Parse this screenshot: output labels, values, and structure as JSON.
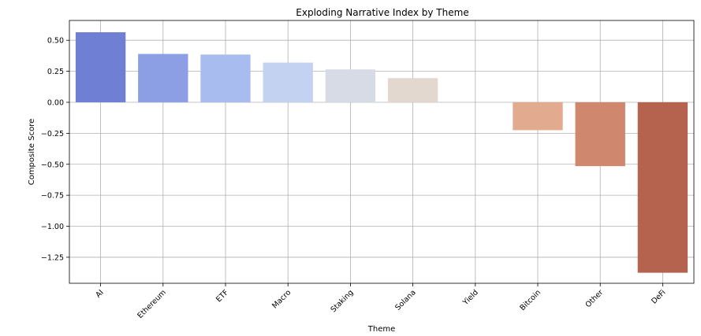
{
  "chart_data": {
    "type": "bar",
    "title": "Exploding Narrative Index by Theme",
    "xlabel": "Theme",
    "ylabel": "Composite Score",
    "categories": [
      "AI",
      "Ethereum",
      "ETF",
      "Macro",
      "Staking",
      "Solana",
      "Yield",
      "Bitcoin",
      "Other",
      "DeFi"
    ],
    "values": [
      0.565,
      0.39,
      0.385,
      0.32,
      0.265,
      0.195,
      0.0,
      -0.225,
      -0.515,
      -1.375
    ],
    "colors": [
      "#6f7fd4",
      "#8c9fe4",
      "#a9bcf0",
      "#c4d2f2",
      "#d6dbe6",
      "#e3d8cf",
      "#ead2c2",
      "#e2ab8f",
      "#cf886e",
      "#b5624f"
    ],
    "yticks": [
      0.5,
      0.25,
      0.0,
      -0.25,
      -0.5,
      -0.75,
      -1.0,
      -1.25
    ],
    "ytick_labels": [
      "0.50",
      "0.25",
      "0.00",
      "−0.25",
      "−0.50",
      "−0.75",
      "−1.00",
      "−1.25"
    ],
    "ylim": [
      -1.46,
      0.66
    ],
    "grid": true,
    "legend": "none"
  }
}
